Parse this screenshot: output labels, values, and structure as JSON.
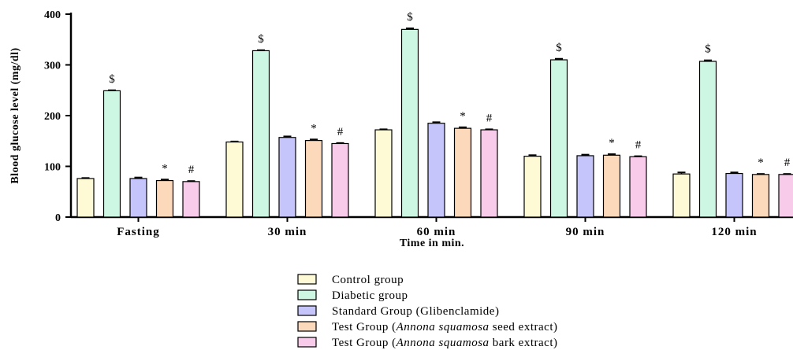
{
  "chart_data": {
    "type": "bar",
    "xlabel": "Time in min.",
    "ylabel": "Blood glucose level (mg/dl)",
    "ylim": [
      0,
      400
    ],
    "yticks": [
      0,
      100,
      200,
      300,
      400
    ],
    "grid": false,
    "legend_position": "bottom",
    "categories": [
      "Fasting",
      "30 min",
      "60 min",
      "90 min",
      "120 min"
    ],
    "series": [
      {
        "name": "Control group",
        "color": "#fdfad5",
        "values": [
          76,
          148,
          172,
          120,
          85
        ],
        "errors": [
          1,
          1,
          1,
          2,
          3
        ],
        "marks": [
          "",
          "",
          "",
          "",
          ""
        ]
      },
      {
        "name": "Diabetic group",
        "color": "#cdf6e3",
        "values": [
          249,
          328,
          370,
          310,
          307
        ],
        "errors": [
          1,
          1,
          2,
          2,
          2
        ],
        "marks": [
          "$",
          "$",
          "$",
          "$",
          "$"
        ]
      },
      {
        "name": "Standard Group (Glibenclamide)",
        "color": "#c5c5fb",
        "values": [
          76,
          157,
          185,
          121,
          86
        ],
        "errors": [
          2,
          2,
          2,
          2,
          2
        ],
        "marks": [
          "",
          "",
          "",
          "",
          ""
        ]
      },
      {
        "name_parts": [
          "Test Group (",
          "Annona squamosa",
          " seed extract)"
        ],
        "color": "#fcd9bb",
        "values": [
          72,
          151,
          175,
          122,
          84
        ],
        "errors": [
          2,
          2,
          2,
          2,
          1
        ],
        "marks": [
          "*",
          "*",
          "*",
          "*",
          "*"
        ]
      },
      {
        "name_parts": [
          "Test Group (",
          "Annona squamosa",
          " bark extract)"
        ],
        "color": "#f9cbea",
        "values": [
          70,
          145,
          172,
          119,
          84
        ],
        "errors": [
          1,
          1,
          1,
          1,
          1
        ],
        "marks": [
          "#",
          "#",
          "#",
          "#",
          "#"
        ]
      }
    ]
  }
}
